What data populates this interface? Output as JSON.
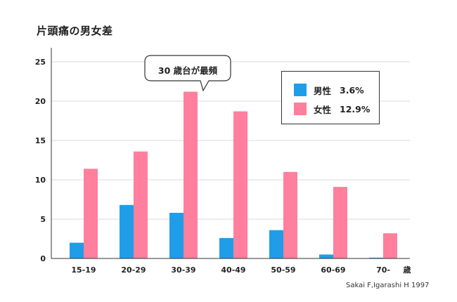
{
  "title": "片頭痛の男女差",
  "source": "Sakai F,Igarashi H 1997",
  "callout": "30 歳台が最頻",
  "colors": {
    "male": "#1f9de8",
    "female": "#ff7f9c",
    "grid": "#d9d9d9",
    "axis": "#333333"
  },
  "legend": [
    {
      "name": "男性",
      "value": "3.6%",
      "color": "#1f9de8"
    },
    {
      "name": "女性",
      "value": "12.9%",
      "color": "#ff7f9c"
    }
  ],
  "chart_data": {
    "type": "bar",
    "title": "片頭痛の男女差",
    "x_unit_label": "歳",
    "categories": [
      "15-19",
      "20-29",
      "30-39",
      "40-49",
      "50-59",
      "60-69",
      "70-"
    ],
    "series": [
      {
        "name": "男性",
        "values": [
          2.0,
          6.8,
          5.8,
          2.6,
          3.6,
          0.5,
          0.1
        ]
      },
      {
        "name": "女性",
        "values": [
          11.4,
          13.6,
          21.2,
          18.7,
          11.0,
          9.1,
          3.2
        ]
      }
    ],
    "ylim": [
      0,
      25
    ],
    "yticks": [
      0,
      5,
      10,
      15,
      20,
      25
    ],
    "grid": true,
    "legend_position": "top-right"
  }
}
